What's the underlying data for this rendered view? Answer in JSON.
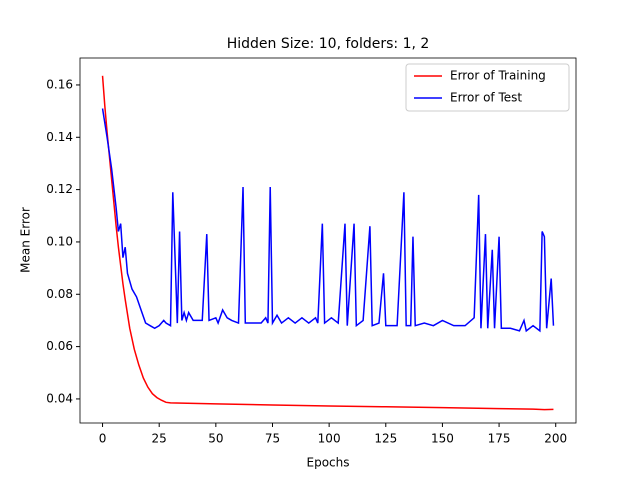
{
  "chart_data": {
    "type": "line",
    "title": "Hidden Size: 10, folders: 1, 2",
    "x_label": "Epochs",
    "y_label": "Mean Error",
    "xlim": [
      -9.95,
      208.95
    ],
    "ylim": [
      0.0308,
      0.1703
    ],
    "xticks": [
      0,
      25,
      50,
      75,
      100,
      125,
      150,
      175,
      200
    ],
    "yticks": [
      0.04,
      0.06,
      0.08,
      {
        "value": 0.1,
        "label": "0.10"
      },
      0.12,
      0.14,
      0.16
    ],
    "grid": false,
    "legend": "upper right",
    "series": [
      {
        "name": "Error of Training",
        "color": "#ff0000",
        "x": [
          0,
          1,
          2,
          3,
          4,
          5,
          6,
          7,
          8,
          9,
          10,
          12,
          14,
          16,
          18,
          20,
          22,
          24,
          26,
          28,
          30,
          40,
          50,
          75,
          100,
          125,
          150,
          175,
          190,
          195,
          199
        ],
        "values": [
          0.1635,
          0.152,
          0.142,
          0.133,
          0.124,
          0.115,
          0.106,
          0.098,
          0.091,
          0.084,
          0.078,
          0.067,
          0.059,
          0.053,
          0.048,
          0.0445,
          0.042,
          0.0405,
          0.0395,
          0.0387,
          0.0385,
          0.0383,
          0.0381,
          0.0377,
          0.0373,
          0.037,
          0.0367,
          0.0363,
          0.0361,
          0.0359,
          0.036
        ]
      },
      {
        "name": "Error of Test",
        "color": "#0000ff",
        "x": [
          0,
          2,
          4,
          6,
          7,
          8,
          9,
          10,
          11,
          13,
          15,
          17,
          19,
          21,
          23,
          25,
          27,
          28,
          30,
          31,
          33,
          34,
          35,
          36,
          37,
          38,
          40,
          44,
          46,
          47,
          50,
          51,
          53,
          55,
          57,
          60,
          62,
          63,
          70,
          72,
          73,
          74,
          75,
          77,
          79,
          82,
          85,
          88,
          91,
          94,
          95,
          97,
          98,
          101,
          104,
          107,
          108,
          111,
          112,
          115,
          118,
          119,
          122,
          124,
          125,
          130,
          133,
          134,
          136,
          137,
          138,
          142,
          146,
          150,
          155,
          160,
          164,
          166,
          167,
          169,
          170,
          172,
          173,
          175,
          176,
          180,
          184,
          186,
          187,
          190,
          193,
          194,
          195,
          196,
          198,
          199
        ],
        "values": [
          0.151,
          0.14,
          0.128,
          0.113,
          0.104,
          0.107,
          0.094,
          0.098,
          0.088,
          0.082,
          0.079,
          0.074,
          0.069,
          0.068,
          0.067,
          0.068,
          0.07,
          0.069,
          0.068,
          0.119,
          0.069,
          0.104,
          0.07,
          0.073,
          0.07,
          0.073,
          0.07,
          0.07,
          0.103,
          0.07,
          0.071,
          0.069,
          0.074,
          0.071,
          0.07,
          0.069,
          0.121,
          0.069,
          0.069,
          0.071,
          0.069,
          0.121,
          0.069,
          0.072,
          0.069,
          0.071,
          0.069,
          0.071,
          0.069,
          0.071,
          0.069,
          0.107,
          0.069,
          0.071,
          0.069,
          0.107,
          0.068,
          0.107,
          0.068,
          0.07,
          0.106,
          0.068,
          0.069,
          0.088,
          0.068,
          0.068,
          0.119,
          0.068,
          0.068,
          0.102,
          0.068,
          0.069,
          0.068,
          0.07,
          0.068,
          0.068,
          0.071,
          0.118,
          0.067,
          0.103,
          0.067,
          0.097,
          0.067,
          0.102,
          0.067,
          0.067,
          0.066,
          0.07,
          0.066,
          0.068,
          0.066,
          0.104,
          0.102,
          0.067,
          0.086,
          0.068
        ]
      }
    ]
  }
}
